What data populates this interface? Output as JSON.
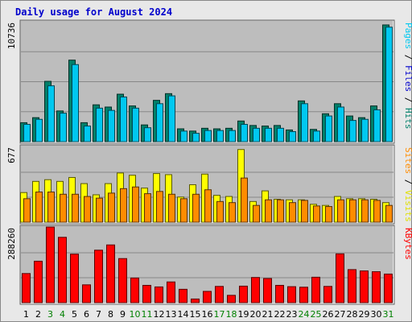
{
  "title": "Daily usage for August 2024",
  "colors": {
    "panel_bg": "#bdbdbd",
    "hits": "#00806a",
    "files": "#00c8f0",
    "pages": "#00c8f0",
    "visits": "#ffff00",
    "sites": "#ff8c00",
    "kbytes": "#ff0000",
    "weekend_label": "#008000",
    "weekday_label": "#000000"
  },
  "chart_data": [
    {
      "type": "bar",
      "panel": "top",
      "ymax_label": "10736",
      "ylim": [
        0,
        10736
      ],
      "side_label_parts": [
        {
          "text": "Pages",
          "color": "#00c8f0"
        },
        {
          "text": " / ",
          "color": "#000000"
        },
        {
          "text": "Files",
          "color": "#0000cc"
        },
        {
          "text": " / ",
          "color": "#000000"
        },
        {
          "text": "Hits",
          "color": "#00806a"
        }
      ],
      "categories": [
        "1",
        "2",
        "3",
        "4",
        "5",
        "6",
        "7",
        "8",
        "9",
        "10",
        "11",
        "12",
        "13",
        "14",
        "15",
        "16",
        "17",
        "18",
        "19",
        "20",
        "21",
        "22",
        "23",
        "24",
        "25",
        "26",
        "27",
        "28",
        "29",
        "30",
        "31"
      ],
      "series": [
        {
          "name": "Hits",
          "values": [
            1700,
            2150,
            5400,
            2750,
            7300,
            1700,
            3300,
            3100,
            4250,
            3200,
            1500,
            3700,
            4300,
            1150,
            950,
            1200,
            1150,
            1200,
            1850,
            1450,
            1400,
            1450,
            1050,
            3650,
            1100,
            2500,
            3400,
            2300,
            2150,
            3200,
            10450
          ]
        },
        {
          "name": "Files",
          "values": [
            1550,
            2000,
            5000,
            2550,
            6900,
            1400,
            3000,
            2800,
            4000,
            3000,
            1250,
            3400,
            4100,
            950,
            750,
            1000,
            1000,
            1000,
            1550,
            1200,
            1200,
            1200,
            900,
            3400,
            950,
            2300,
            3100,
            1900,
            2000,
            2850,
            10250
          ]
        }
      ]
    },
    {
      "type": "bar",
      "panel": "middle",
      "ymax_label": "677",
      "ylim": [
        0,
        677
      ],
      "side_label_parts": [
        {
          "text": "Sites",
          "color": "#ff8c00"
        },
        {
          "text": " / ",
          "color": "#000000"
        },
        {
          "text": "Visits",
          "color": "#e0e000"
        }
      ],
      "categories": [
        "1",
        "2",
        "3",
        "4",
        "5",
        "6",
        "7",
        "8",
        "9",
        "10",
        "11",
        "12",
        "13",
        "14",
        "15",
        "16",
        "17",
        "18",
        "19",
        "20",
        "21",
        "22",
        "23",
        "24",
        "25",
        "26",
        "27",
        "28",
        "29",
        "30",
        "31"
      ],
      "series": [
        {
          "name": "Visits",
          "values": [
            265,
            365,
            380,
            365,
            400,
            345,
            245,
            345,
            440,
            420,
            305,
            435,
            425,
            225,
            335,
            430,
            240,
            230,
            650,
            185,
            280,
            205,
            200,
            200,
            160,
            150,
            230,
            210,
            210,
            205,
            175
          ]
        },
        {
          "name": "Sites",
          "values": [
            210,
            270,
            270,
            250,
            250,
            230,
            215,
            260,
            300,
            315,
            255,
            275,
            250,
            210,
            250,
            290,
            185,
            175,
            395,
            150,
            200,
            200,
            175,
            195,
            145,
            140,
            200,
            200,
            200,
            195,
            150
          ]
        }
      ]
    },
    {
      "type": "bar",
      "panel": "bottom",
      "ymax_label": "288260",
      "ylim": [
        0,
        288260
      ],
      "side_label_parts": [
        {
          "text": "KBytes",
          "color": "#ff0000"
        }
      ],
      "categories": [
        "1",
        "2",
        "3",
        "4",
        "5",
        "6",
        "7",
        "8",
        "9",
        "10",
        "11",
        "12",
        "13",
        "14",
        "15",
        "16",
        "17",
        "18",
        "19",
        "20",
        "21",
        "22",
        "23",
        "24",
        "25",
        "26",
        "27",
        "28",
        "29",
        "30",
        "31"
      ],
      "series": [
        {
          "name": "KBytes",
          "values": [
            111000,
            158000,
            288000,
            249000,
            185000,
            68000,
            200000,
            220000,
            168000,
            94000,
            66000,
            60000,
            79000,
            51000,
            14000,
            43000,
            62000,
            28000,
            63000,
            96000,
            92000,
            66000,
            61000,
            59000,
            97000,
            62000,
            186000,
            126000,
            121000,
            118000,
            109000
          ]
        }
      ],
      "weekend_days": [
        "3",
        "4",
        "10",
        "11",
        "17",
        "18",
        "24",
        "25",
        "31"
      ]
    }
  ]
}
